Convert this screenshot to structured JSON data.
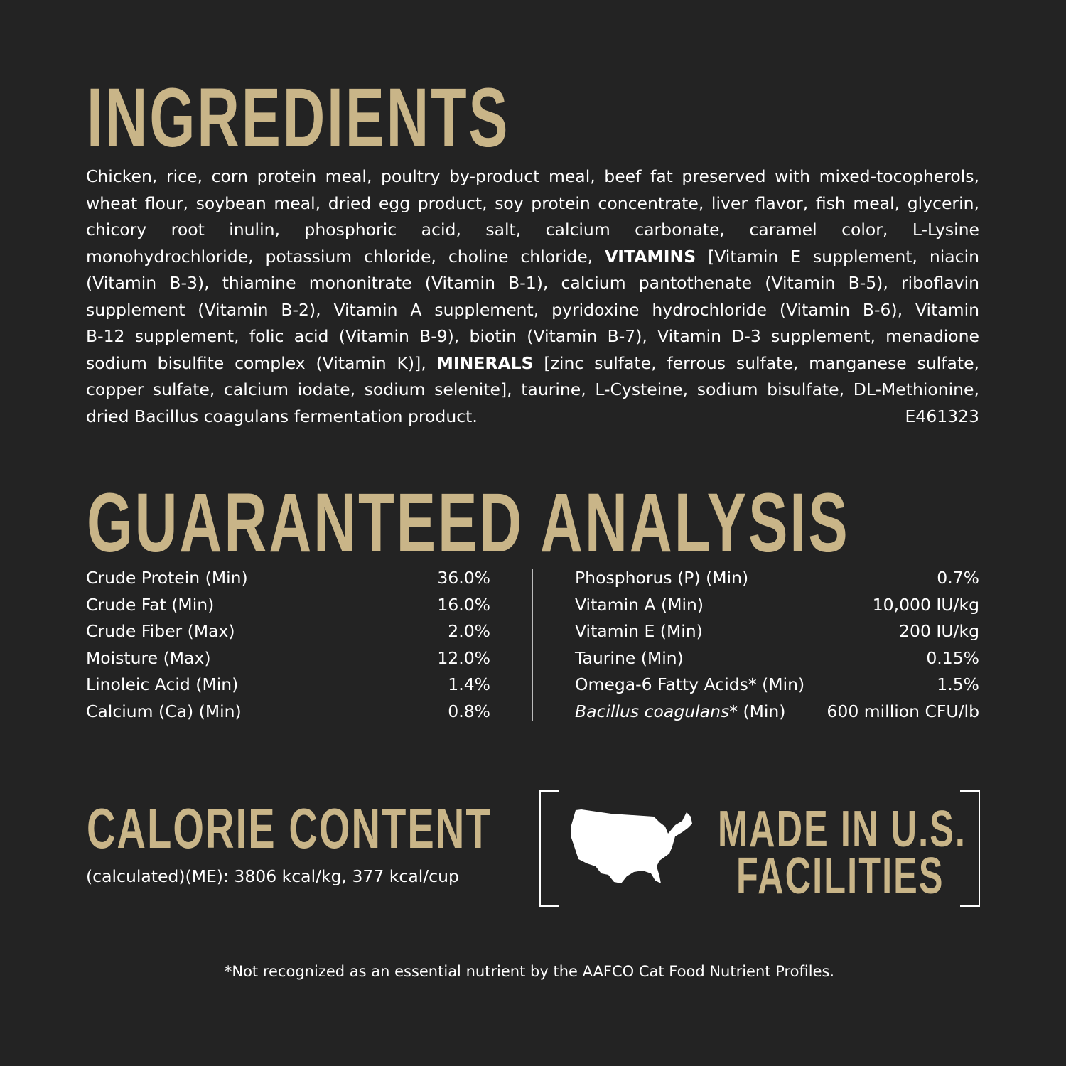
{
  "ingredients": {
    "title": "INGREDIENTS",
    "lines": [
      "Chicken, rice, corn protein meal, poultry by-product meal, beef fat preserved with mixed-tocopherols,",
      "wheat flour, soybean meal, dried egg product, soy protein concentrate, liver flavor, fish meal, glycerin,",
      "chicory root inulin, phosphoric acid, salt, calcium carbonate, caramel color, L-Lysine",
      [
        "monohydrochloride, potassium chloride, choline chloride, ",
        "VITAMINS",
        " [Vitamin E supplement, niacin"
      ],
      "(Vitamin B-3), thiamine mononitrate (Vitamin B-1), calcium pantothenate (Vitamin B-5), riboflavin",
      "supplement (Vitamin B-2), Vitamin A supplement, pyridoxine hydrochloride (Vitamin B-6), Vitamin",
      "B-12 supplement, folic acid (Vitamin B-9), biotin (Vitamin B-7), Vitamin D-3 supplement, menadione",
      [
        "sodium bisulfite complex (Vitamin K)], ",
        "MINERALS",
        " [zinc sulfate, ferrous sulfate, manganese sulfate,"
      ],
      "copper sulfate, calcium iodate, sodium selenite], taurine, L-Cysteine, sodium bisulfate, DL-Methionine,",
      "dried Bacillus coagulans fermentation product."
    ],
    "code": "E461323"
  },
  "analysis": {
    "title": "GUARANTEED ANALYSIS",
    "left": [
      {
        "label": "Crude Protein (Min)",
        "value": "36.0%"
      },
      {
        "label": "Crude Fat (Min)",
        "value": "16.0%"
      },
      {
        "label": "Crude Fiber (Max)",
        "value": "2.0%"
      },
      {
        "label": "Moisture (Max)",
        "value": "12.0%"
      },
      {
        "label": "Linoleic Acid (Min)",
        "value": "1.4%"
      },
      {
        "label": "Calcium (Ca) (Min)",
        "value": "0.8%"
      }
    ],
    "right": [
      {
        "label": "Phosphorus (P) (Min)",
        "value": "0.7%"
      },
      {
        "label": "Vitamin A (Min)",
        "value": "10,000 IU/kg"
      },
      {
        "label": "Vitamin E (Min)",
        "value": "200 IU/kg"
      },
      {
        "label": "Taurine (Min)",
        "value": "0.15%"
      },
      {
        "label": "Omega-6 Fatty Acids* (Min)",
        "value": "1.5%"
      },
      {
        "label_italic": "Bacillus coagulans",
        "label": "* (Min)",
        "value": "600 million CFU/lb"
      }
    ]
  },
  "calorie": {
    "title": "CALORIE CONTENT",
    "text": "(calculated)(ME): 3806 kcal/kg, 377 kcal/cup"
  },
  "made_in": {
    "line1": "MADE IN U.S.",
    "line2": "FACILITIES",
    "icon": "usa-map-icon"
  },
  "footnote": "*Not recognized as an essential nutrient by the AAFCO Cat Food Nutrient Profiles.",
  "colors": {
    "background": "#232323",
    "gold": "#c9b588",
    "text": "#ffffff"
  }
}
